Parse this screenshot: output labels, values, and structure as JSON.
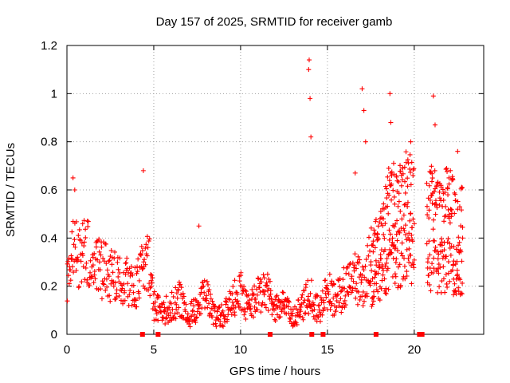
{
  "chart_data": {
    "type": "scatter",
    "title": "Day 157 of 2025, SRMTID for receiver gamb",
    "xlabel": "GPS time / hours",
    "ylabel": "SRMTID / TECUs",
    "xlim": [
      0,
      24
    ],
    "ylim": [
      0,
      1.2
    ],
    "x_ticks": [
      0,
      5,
      10,
      15,
      20
    ],
    "y_ticks": [
      0,
      0.2,
      0.4,
      0.6,
      0.8,
      1.0,
      1.2
    ],
    "x_tick_labels": [
      "0",
      "5",
      "10",
      "15",
      "20"
    ],
    "y_tick_labels": [
      "0",
      "0.2",
      "0.4",
      "0.6",
      "0.8",
      "1",
      "1.2"
    ],
    "grid": true,
    "marker": "+",
    "series_color": "#ff0000",
    "series": [
      {
        "name": "SRMTID",
        "trend": [
          [
            0.0,
            0.25
          ],
          [
            0.3,
            0.33
          ],
          [
            0.5,
            0.38
          ],
          [
            0.8,
            0.3
          ],
          [
            1.0,
            0.35
          ],
          [
            1.5,
            0.3
          ],
          [
            2.0,
            0.27
          ],
          [
            2.5,
            0.25
          ],
          [
            3.0,
            0.22
          ],
          [
            3.5,
            0.22
          ],
          [
            4.0,
            0.2
          ],
          [
            4.5,
            0.3
          ],
          [
            4.8,
            0.28
          ],
          [
            5.0,
            0.12
          ],
          [
            5.5,
            0.09
          ],
          [
            6.0,
            0.12
          ],
          [
            6.5,
            0.15
          ],
          [
            7.0,
            0.07
          ],
          [
            7.5,
            0.12
          ],
          [
            8.0,
            0.16
          ],
          [
            8.5,
            0.07
          ],
          [
            9.0,
            0.08
          ],
          [
            9.5,
            0.14
          ],
          [
            10.0,
            0.18
          ],
          [
            10.5,
            0.1
          ],
          [
            11.0,
            0.18
          ],
          [
            11.5,
            0.18
          ],
          [
            12.0,
            0.1
          ],
          [
            12.5,
            0.12
          ],
          [
            13.0,
            0.07
          ],
          [
            13.5,
            0.1
          ],
          [
            14.0,
            0.17
          ],
          [
            14.5,
            0.1
          ],
          [
            15.0,
            0.18
          ],
          [
            15.5,
            0.14
          ],
          [
            16.0,
            0.2
          ],
          [
            16.5,
            0.25
          ],
          [
            17.0,
            0.2
          ],
          [
            17.5,
            0.3
          ],
          [
            18.0,
            0.3
          ],
          [
            18.5,
            0.45
          ],
          [
            19.0,
            0.45
          ],
          [
            19.5,
            0.5
          ],
          [
            20.0,
            0.45
          ],
          [
            20.3,
            null
          ],
          [
            20.7,
            0.4
          ],
          [
            21.0,
            0.45
          ],
          [
            21.5,
            0.4
          ],
          [
            22.0,
            0.45
          ],
          [
            22.5,
            0.35
          ],
          [
            22.8,
            0.4
          ]
        ],
        "peaks": [
          [
            0.35,
            0.65
          ],
          [
            0.45,
            0.6
          ],
          [
            4.4,
            0.68
          ],
          [
            7.6,
            0.45
          ],
          [
            13.95,
            1.14
          ],
          [
            13.92,
            1.1
          ],
          [
            14.0,
            0.98
          ],
          [
            14.05,
            0.82
          ],
          [
            16.6,
            0.67
          ],
          [
            17.0,
            1.02
          ],
          [
            17.1,
            0.93
          ],
          [
            17.2,
            0.8
          ],
          [
            18.6,
            1.0
          ],
          [
            18.65,
            0.88
          ],
          [
            19.8,
            0.8
          ],
          [
            21.1,
            0.99
          ],
          [
            21.2,
            0.87
          ],
          [
            22.5,
            0.76
          ],
          [
            22.0,
            0.65
          ]
        ],
        "zero_points": [
          4.35,
          5.25,
          11.7,
          14.1,
          14.75,
          17.8,
          20.3,
          20.45
        ]
      }
    ]
  }
}
